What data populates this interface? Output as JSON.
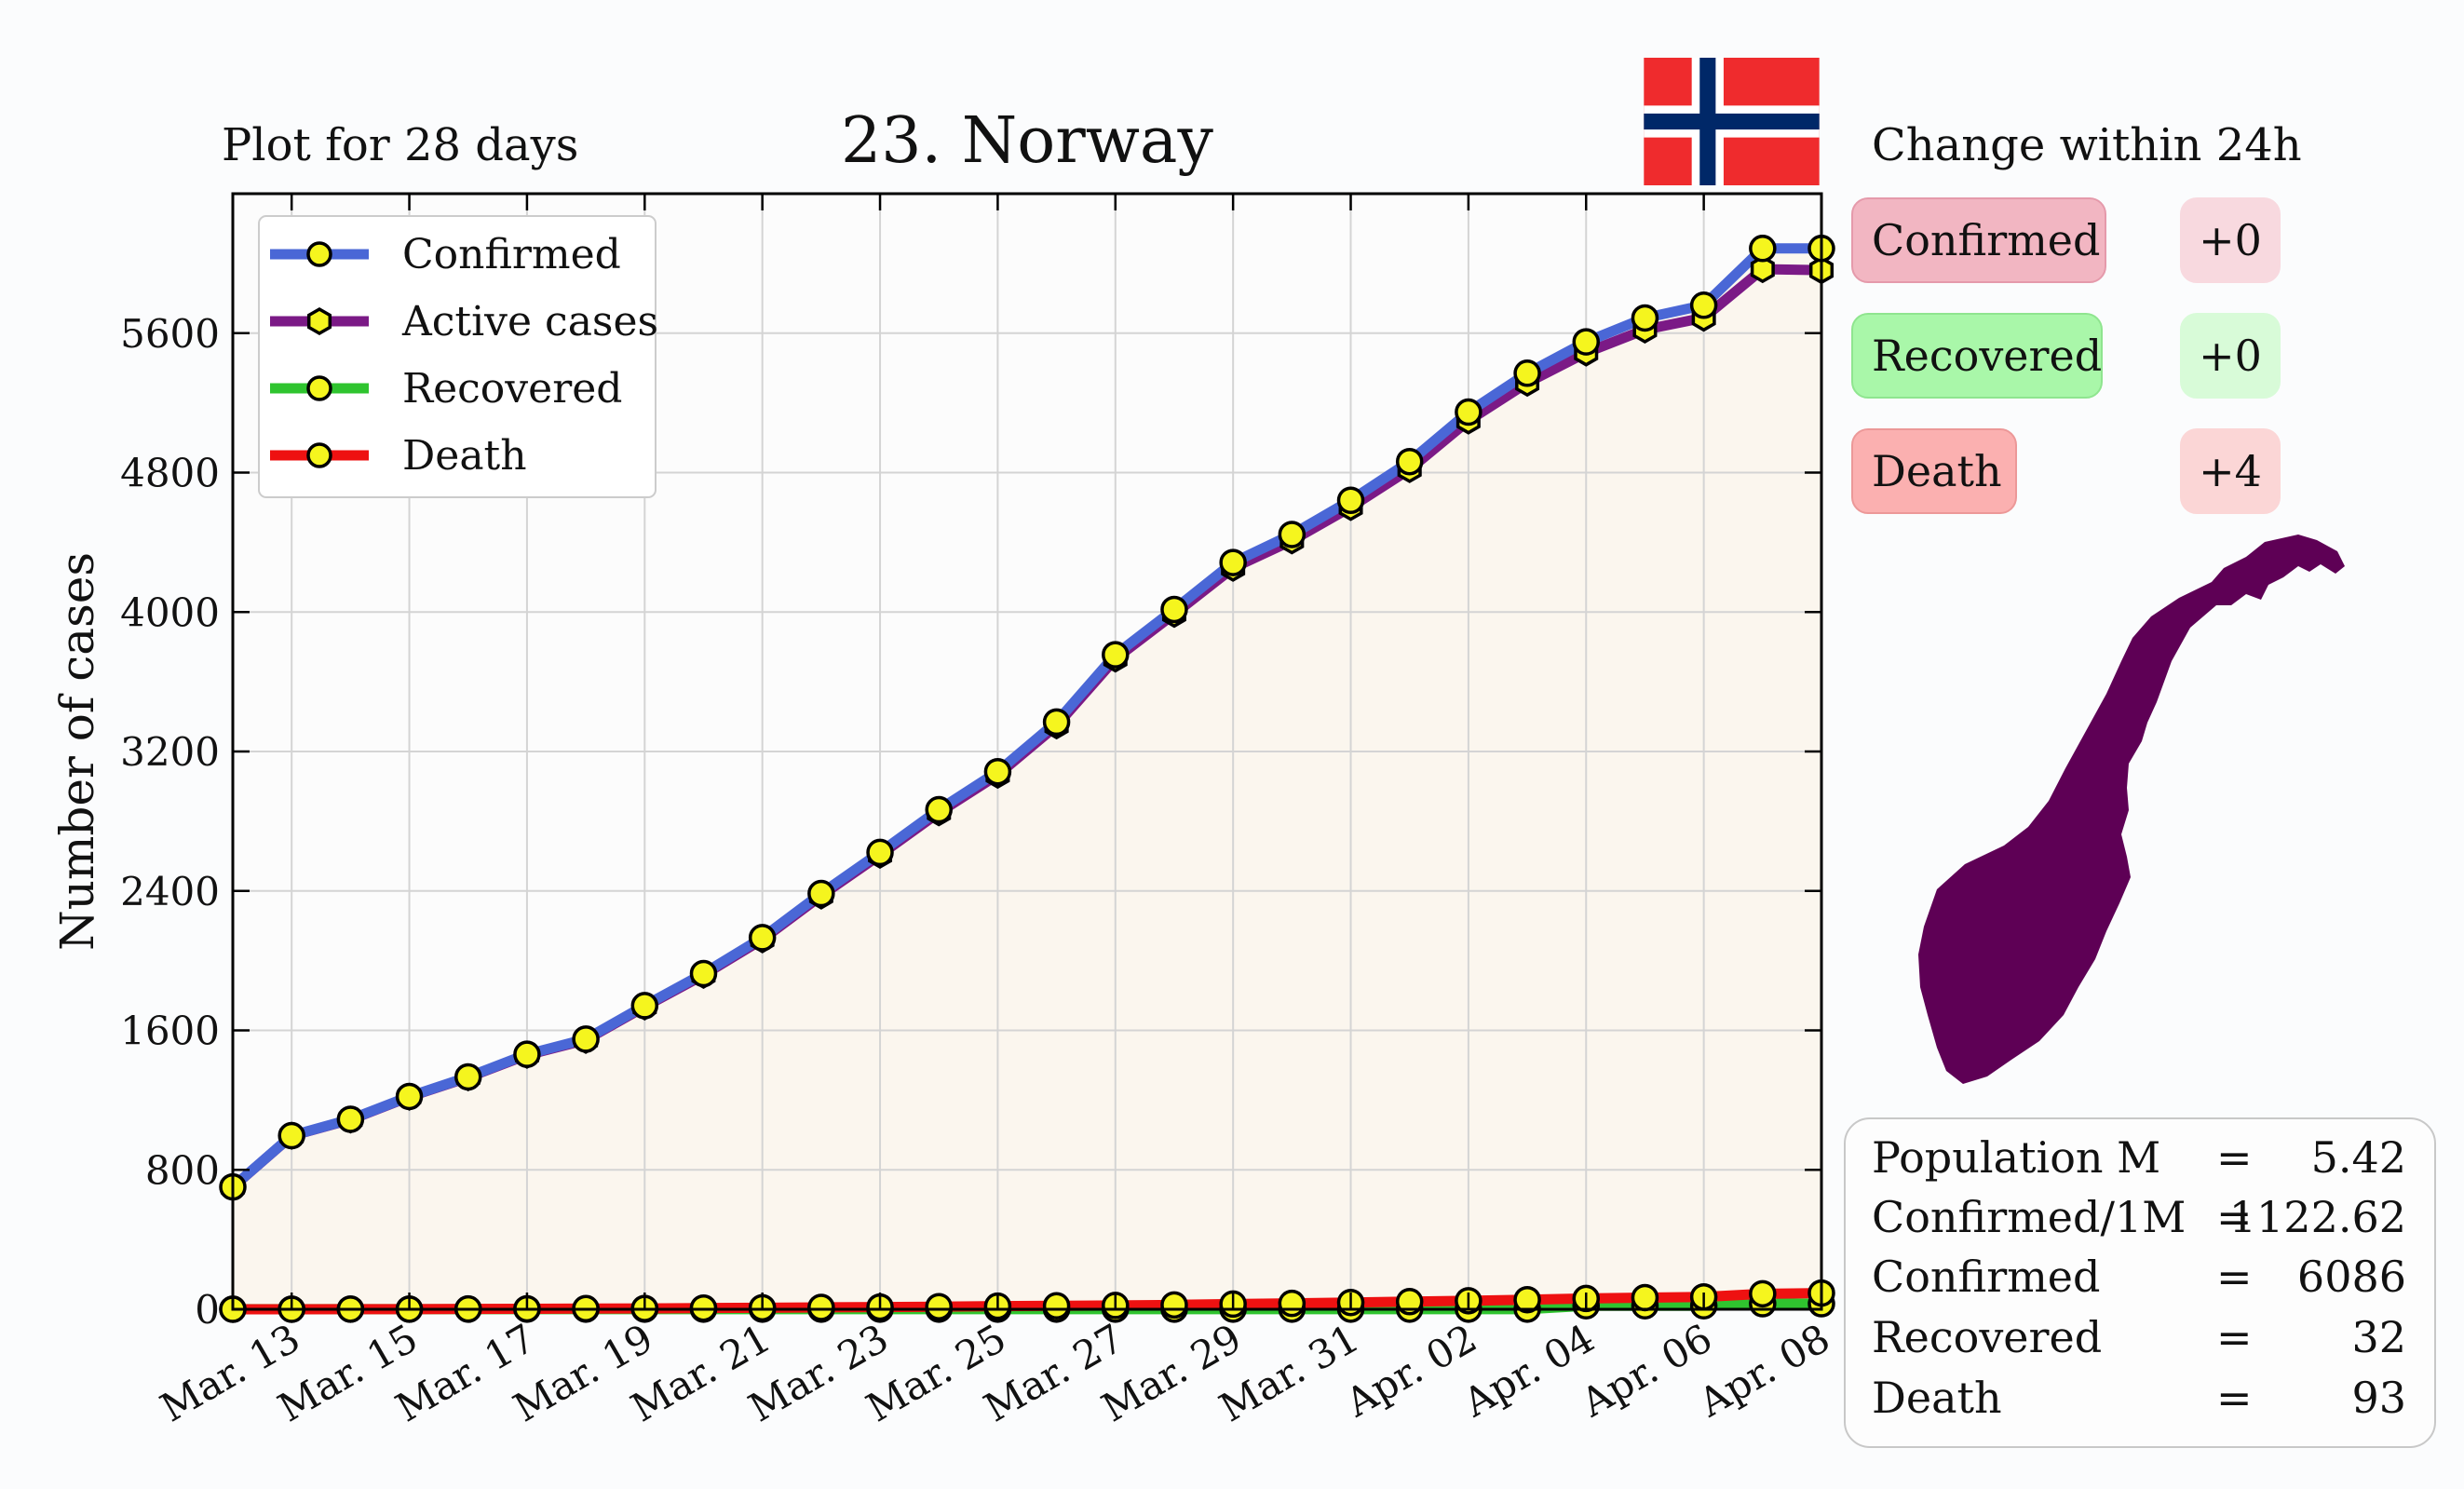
{
  "header": {
    "plot_days": "Plot for 28 days",
    "title": "23. Norway",
    "change_title": "Change within 24h"
  },
  "colors": {
    "confirmed": "#4a67d6",
    "active": "#7b1a86",
    "recovered": "#2fc42f",
    "death": "#ee1111",
    "marker": "#f5f51e",
    "fill": "#fbf6ee",
    "map": "#5e0055",
    "flag_red": "#ef2b2d",
    "flag_blue": "#002868"
  },
  "changes": [
    {
      "label": "Confirmed",
      "delta": "+0",
      "bg": "#f2b6c2",
      "border": "#e59aab",
      "delta_bg": "#f8d9df"
    },
    {
      "label": "Recovered",
      "delta": "+0",
      "bg": "#a9f7a9",
      "border": "#8fe58f",
      "delta_bg": "#d8fbd8"
    },
    {
      "label": "Death",
      "delta": "+4",
      "bg": "#fbb0b0",
      "border": "#ec9898",
      "delta_bg": "#fbd6d6"
    }
  ],
  "stats": [
    {
      "key": "Population M",
      "eq": "=",
      "value": "5.42"
    },
    {
      "key": "Confirmed/1M",
      "eq": "=",
      "value": "1122.62"
    },
    {
      "key": "Confirmed",
      "eq": "=",
      "value": "6086"
    },
    {
      "key": "Recovered",
      "eq": "=",
      "value": "32"
    },
    {
      "key": "Death",
      "eq": "=",
      "value": "93"
    }
  ],
  "chart_data": {
    "type": "line",
    "ylabel": "Number of cases",
    "ylim": [
      0,
      6400
    ],
    "yticks": [
      0,
      800,
      1600,
      2400,
      3200,
      4000,
      4800,
      5600
    ],
    "x": [
      "Mar. 12",
      "Mar. 13",
      "Mar. 14",
      "Mar. 15",
      "Mar. 16",
      "Mar. 17",
      "Mar. 18",
      "Mar. 19",
      "Mar. 20",
      "Mar. 21",
      "Mar. 22",
      "Mar. 23",
      "Mar. 24",
      "Mar. 25",
      "Mar. 26",
      "Mar. 27",
      "Mar. 28",
      "Mar. 29",
      "Mar. 30",
      "Mar. 31",
      "Apr. 01",
      "Apr. 02",
      "Apr. 03",
      "Apr. 04",
      "Apr. 05",
      "Apr. 06",
      "Apr. 07",
      "Apr. 08"
    ],
    "xtick_labels": [
      "Mar. 13",
      "Mar. 15",
      "Mar. 17",
      "Mar. 19",
      "Mar. 21",
      "Mar. 23",
      "Mar. 25",
      "Mar. 27",
      "Mar. 29",
      "Mar. 31",
      "Apr. 02",
      "Apr. 04",
      "Apr. 06",
      "Apr. 08"
    ],
    "grid": true,
    "legend_position": "top-left",
    "series": [
      {
        "name": "Confirmed",
        "values": [
          702,
          996,
          1090,
          1221,
          1333,
          1463,
          1550,
          1742,
          1926,
          2132,
          2385,
          2621,
          2866,
          3084,
          3369,
          3755,
          4015,
          4284,
          4445,
          4641,
          4863,
          5147,
          5370,
          5550,
          5687,
          5760,
          6086,
          6086
        ]
      },
      {
        "name": "Active cases",
        "values": [
          701,
          995,
          1088,
          1219,
          1330,
          1459,
          1545,
          1736,
          1918,
          2122,
          2373,
          2607,
          2850,
          3066,
          3349,
          3732,
          3989,
          4253,
          4410,
          4602,
          4819,
          5098,
          5315,
          5488,
          5620,
          5688,
          5967,
          5961
        ]
      },
      {
        "name": "Recovered",
        "values": [
          1,
          1,
          1,
          1,
          1,
          1,
          1,
          1,
          1,
          1,
          1,
          1,
          1,
          1,
          1,
          1,
          1,
          1,
          1,
          1,
          1,
          1,
          1,
          20,
          20,
          20,
          32,
          32
        ]
      },
      {
        "name": "Death",
        "values": [
          0,
          0,
          1,
          1,
          2,
          3,
          4,
          5,
          7,
          9,
          11,
          13,
          15,
          18,
          20,
          22,
          25,
          30,
          34,
          39,
          44,
          49,
          55,
          62,
          67,
          71,
          89,
          93
        ]
      }
    ]
  }
}
